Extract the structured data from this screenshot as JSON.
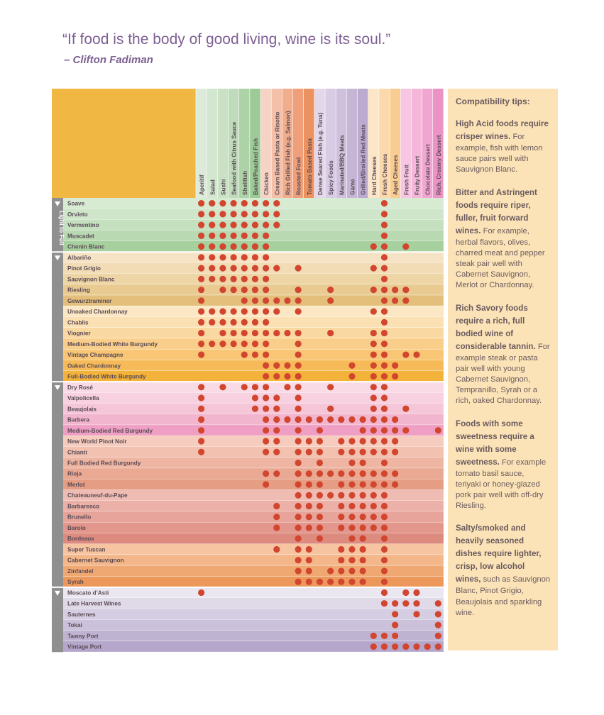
{
  "quote": "“If food is the body of good living, wine is its soul.”",
  "author": "– Clifton Fadiman",
  "tips": {
    "title": "Compatibility tips:",
    "items": [
      {
        "heading": "High Acid foods require crisper wines.",
        "body": "For example, fish with lemon sauce pairs well with Sauvignon Blanc."
      },
      {
        "heading": "Bitter and Astringent foods require riper, fuller, fruit forward wines.",
        "body": "For example, herbal flavors, olives, charred meat and pepper steak pair well with Cabernet Sauvignon, Merlot or Chardonnay."
      },
      {
        "heading": "Rich Savory foods require a rich, full bodied wine of considerable tannin.",
        "body": "For example steak or pasta pair well with young Cabernet Sauvignon, Tempranillo, Syrah or a rich, oaked Chardonnay."
      },
      {
        "heading": "Foods with some sweetness require a wine with some sweetness.",
        "body": "For example tomato basil sauce, teriyaki or honey-glazed pork pair well with off-dry Riesling."
      },
      {
        "heading": "Salty/smoked and heavily seasoned dishes require lighter, crisp, low alcohol wines,",
        "body": "such as Sauvignon Blanc, Pinot Grigio, Beaujolais and sparkling wine."
      }
    ]
  },
  "colors": {
    "header_block": "#f0b843",
    "dot": "#d2452f",
    "side_bar": "#8f8f8f",
    "tips_bg": "#fbe3b7"
  },
  "chart_data": {
    "type": "table",
    "side_label": "Light to Full",
    "columns": [
      "Aperitif",
      "Salad",
      "Sushi",
      "Seafood with Citrus Sauce",
      "Shellfish",
      "Baked/Poached Fish",
      "Chicken",
      "Cream Based Pasta or Risotto",
      "Rich Grilled Fish (e.g. Salmon)",
      "Roasted Fowl",
      "Tomato Based Pasta",
      "Dense Seared Fish (e.g. Tuna)",
      "Spicy Foods",
      "Marinated/BBQ Meats",
      "Game",
      "Grilled/Broiled Red Meats",
      "Hard Cheeses",
      "Fresh Cheeses",
      "Aged Cheeses",
      "Fresh Fruit",
      "Fruity Dessert",
      "Chocolate Dessert",
      "Rich, Creamy Dessert"
    ],
    "column_colors": [
      "#dcead9",
      "#d3e6cf",
      "#cae1c5",
      "#bfdbba",
      "#aed2a8",
      "#9ccb97",
      "#f6d3c4",
      "#f4c0a8",
      "#f2ad8d",
      "#efa07a",
      "#ec9260",
      "#e3d7ea",
      "#d8cbe4",
      "#cfc0dd",
      "#c6b6d6",
      "#bcaad0",
      "#fde6c7",
      "#fbd9ac",
      "#f9cc92",
      "#f7c6e2",
      "#f4b7da",
      "#f1a6d1",
      "#ec93c5"
    ],
    "groups": [
      {
        "rows": [
          {
            "wine": "Soave",
            "color": "#d7ebd3",
            "pairs": [
              0,
              1,
              2,
              3,
              4,
              5,
              6,
              7,
              17
            ]
          },
          {
            "wine": "Orvieto",
            "color": "#cfe6ca",
            "pairs": [
              0,
              1,
              2,
              3,
              4,
              5,
              6,
              7,
              17
            ]
          },
          {
            "wine": "Vermentino",
            "color": "#c5e0bf",
            "pairs": [
              0,
              1,
              2,
              3,
              4,
              5,
              6,
              7,
              17
            ]
          },
          {
            "wine": "Muscadet",
            "color": "#b8d9b1",
            "pairs": [
              0,
              1,
              2,
              3,
              4,
              5,
              6,
              17
            ]
          },
          {
            "wine": "Chenin Blanc",
            "color": "#a6d09e",
            "pairs": [
              0,
              1,
              2,
              3,
              4,
              5,
              6,
              16,
              17,
              19
            ]
          }
        ]
      },
      {
        "rows": [
          {
            "wine": "Albariño",
            "color": "#f6e3c5",
            "pairs": [
              0,
              1,
              2,
              3,
              4,
              5,
              6,
              17
            ]
          },
          {
            "wine": "Pinot Grigio",
            "color": "#f2dcb6",
            "pairs": [
              0,
              1,
              2,
              3,
              4,
              5,
              6,
              7,
              9,
              16,
              17
            ]
          },
          {
            "wine": "Sauvignon Blanc",
            "color": "#eed5a6",
            "pairs": [
              0,
              1,
              2,
              3,
              4,
              5,
              6,
              17
            ]
          },
          {
            "wine": "Riesling",
            "color": "#e9cb92",
            "pairs": [
              0,
              2,
              3,
              4,
              5,
              6,
              9,
              12,
              16,
              17,
              18,
              19
            ]
          },
          {
            "wine": "Gewurztraminer",
            "color": "#e3bf7b",
            "pairs": [
              0,
              4,
              5,
              6,
              7,
              8,
              9,
              12,
              17,
              18,
              19
            ]
          },
          {
            "wine": "Unoaked Chardonnay",
            "color": "#fce7c4",
            "pairs": [
              0,
              1,
              2,
              3,
              4,
              5,
              6,
              7,
              9,
              16,
              17
            ]
          },
          {
            "wine": "Chablis",
            "color": "#fbe0b4",
            "pairs": [
              0,
              1,
              2,
              3,
              4,
              5,
              6,
              17
            ]
          },
          {
            "wine": "Viognier",
            "color": "#fad8a1",
            "pairs": [
              0,
              2,
              3,
              4,
              5,
              6,
              7,
              8,
              9,
              12,
              16,
              17
            ]
          },
          {
            "wine": "Medium-Bodied White Burgundy",
            "color": "#f9ce8b",
            "pairs": [
              0,
              1,
              2,
              3,
              4,
              5,
              6,
              9,
              16,
              17
            ]
          },
          {
            "wine": "Vintage Champagne",
            "color": "#f8c674",
            "pairs": [
              0,
              4,
              5,
              6,
              9,
              16,
              17,
              19,
              20
            ]
          },
          {
            "wine": "Oaked Chardonnay",
            "color": "#f6bb58",
            "pairs": [
              6,
              7,
              8,
              9,
              14,
              16,
              17,
              18
            ]
          },
          {
            "wine": "Full-Bodied White Burgundy",
            "color": "#f3b33a",
            "pairs": [
              6,
              7,
              8,
              9,
              14,
              16,
              17,
              18
            ]
          }
        ]
      },
      {
        "rows": [
          {
            "wine": "Dry Rosé",
            "color": "#f9dbe6",
            "pairs": [
              0,
              2,
              4,
              5,
              6,
              8,
              9,
              12,
              16,
              17
            ]
          },
          {
            "wine": "Valpolicella",
            "color": "#f7d1e0",
            "pairs": [
              0,
              5,
              6,
              7,
              9,
              16,
              17
            ]
          },
          {
            "wine": "Beaujolais",
            "color": "#f5c5d8",
            "pairs": [
              0,
              5,
              6,
              7,
              9,
              12,
              16,
              17,
              19
            ]
          },
          {
            "wine": "Barbera",
            "color": "#f2b5ce",
            "pairs": [
              0,
              6,
              7,
              8,
              9,
              10,
              11,
              12,
              13,
              14,
              15,
              16,
              17,
              18
            ]
          },
          {
            "wine": "Medium-Bodied Red Burgundy",
            "color": "#ee9fc3",
            "pairs": [
              0,
              6,
              7,
              9,
              11,
              15,
              16,
              17,
              18,
              19,
              22
            ]
          },
          {
            "wine": "New World Pinot Noir",
            "color": "#f5ccbd",
            "pairs": [
              0,
              6,
              7,
              9,
              10,
              11,
              13,
              14,
              15,
              16,
              17,
              18
            ]
          },
          {
            "wine": "Chianti",
            "color": "#f2c1b0",
            "pairs": [
              0,
              6,
              7,
              9,
              10,
              11,
              13,
              14,
              15,
              16,
              17,
              18
            ]
          },
          {
            "wine": "Full Bodied Red Burgundy",
            "color": "#eeb5a2",
            "pairs": [
              9,
              11,
              14,
              15,
              17
            ]
          },
          {
            "wine": "Rioja",
            "color": "#eaa993",
            "pairs": [
              6,
              7,
              9,
              10,
              11,
              12,
              13,
              14,
              15,
              16,
              17,
              18
            ]
          },
          {
            "wine": "Merlot",
            "color": "#e59d84",
            "pairs": [
              6,
              9,
              10,
              11,
              13,
              14,
              15,
              16,
              17,
              18
            ]
          },
          {
            "wine": "Chateauneuf-du-Pape",
            "color": "#eebcb3",
            "pairs": [
              9,
              10,
              11,
              12,
              13,
              14,
              15,
              16,
              17
            ]
          },
          {
            "wine": "Barbaresco",
            "color": "#ebb0a7",
            "pairs": [
              7,
              9,
              10,
              11,
              13,
              14,
              15,
              16,
              17
            ]
          },
          {
            "wine": "Brunello",
            "color": "#e7a49a",
            "pairs": [
              7,
              9,
              10,
              11,
              13,
              14,
              15,
              16,
              17
            ]
          },
          {
            "wine": "Barolo",
            "color": "#e3978c",
            "pairs": [
              7,
              9,
              10,
              11,
              13,
              14,
              15,
              16,
              17
            ]
          },
          {
            "wine": "Bordeaux",
            "color": "#dd8a7f",
            "pairs": [
              9,
              11,
              14,
              15,
              17
            ]
          },
          {
            "wine": "Super Tuscan",
            "color": "#f6c4a0",
            "pairs": [
              7,
              9,
              10,
              13,
              14,
              15,
              17
            ]
          },
          {
            "wine": "Cabernet Sauvignon",
            "color": "#f3b78a",
            "pairs": [
              9,
              10,
              13,
              14,
              15,
              17
            ]
          },
          {
            "wine": "Zinfandel",
            "color": "#f0a873",
            "pairs": [
              9,
              10,
              12,
              13,
              14,
              15,
              17
            ]
          },
          {
            "wine": "Syrah",
            "color": "#ec985b",
            "pairs": [
              9,
              10,
              11,
              12,
              13,
              14,
              15,
              17
            ]
          }
        ]
      },
      {
        "rows": [
          {
            "wine": "Moscato d’Asti",
            "color": "#ebe7f0",
            "pairs": [
              0,
              17,
              19,
              20
            ]
          },
          {
            "wine": "Late Harvest Wines",
            "color": "#e0d9e8",
            "pairs": [
              17,
              18,
              19,
              20,
              22
            ]
          },
          {
            "wine": "Sauternes",
            "color": "#d5cde1",
            "pairs": [
              18,
              20,
              22
            ]
          },
          {
            "wine": "Tokai",
            "color": "#cbc1da",
            "pairs": [
              18,
              22
            ]
          },
          {
            "wine": "Tawny Port",
            "color": "#bfb3d2",
            "pairs": [
              16,
              17,
              18,
              22
            ]
          },
          {
            "wine": "Vintage Port",
            "color": "#b5a6cb",
            "pairs": [
              16,
              17,
              18,
              19,
              20,
              21,
              22
            ]
          }
        ]
      }
    ]
  }
}
